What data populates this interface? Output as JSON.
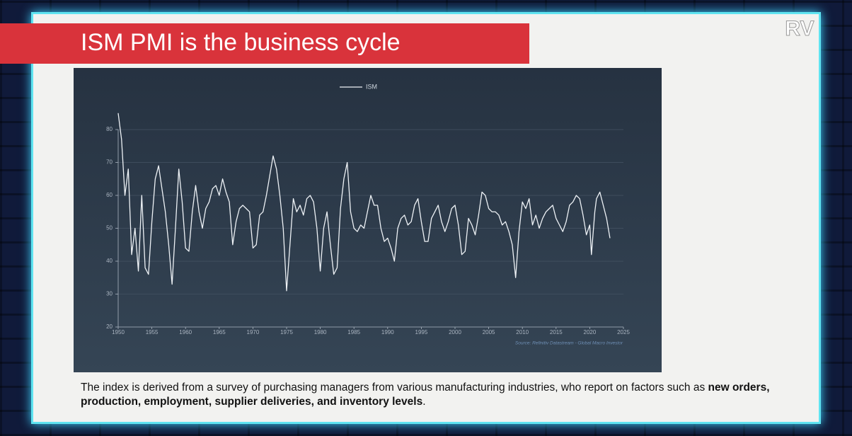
{
  "header": {
    "title": "ISM PMI is the business cycle",
    "logo": "RV"
  },
  "chart_data": {
    "type": "line",
    "legend": "top",
    "grid": true,
    "source": "Source: Refinitiv Datastream - Global Macro Investor",
    "x": [
      1950,
      1950.5,
      1951,
      1951.5,
      1952,
      1952.5,
      1953,
      1953.5,
      1954,
      1954.5,
      1955,
      1955.5,
      1956,
      1956.5,
      1957,
      1957.5,
      1958,
      1958.5,
      1959,
      1959.5,
      1960,
      1960.5,
      1961,
      1961.5,
      1962,
      1962.5,
      1963,
      1963.5,
      1964,
      1964.5,
      1965,
      1965.5,
      1966,
      1966.5,
      1967,
      1967.5,
      1968,
      1968.5,
      1969,
      1969.5,
      1970,
      1970.5,
      1971,
      1971.5,
      1972,
      1972.5,
      1973,
      1973.5,
      1974,
      1974.5,
      1975,
      1975.5,
      1976,
      1976.5,
      1977,
      1977.5,
      1978,
      1978.5,
      1979,
      1979.5,
      1980,
      1980.5,
      1981,
      1981.5,
      1982,
      1982.5,
      1983,
      1983.5,
      1984,
      1984.5,
      1985,
      1985.5,
      1986,
      1986.5,
      1987,
      1987.5,
      1988,
      1988.5,
      1989,
      1989.5,
      1990,
      1990.5,
      1991,
      1991.5,
      1992,
      1992.5,
      1993,
      1993.5,
      1994,
      1994.5,
      1995,
      1995.5,
      1996,
      1996.5,
      1997,
      1997.5,
      1998,
      1998.5,
      1999,
      1999.5,
      2000,
      2000.5,
      2001,
      2001.5,
      2002,
      2002.5,
      2003,
      2003.5,
      2004,
      2004.5,
      2005,
      2005.5,
      2006,
      2006.5,
      2007,
      2007.5,
      2008,
      2008.5,
      2009,
      2009.5,
      2010,
      2010.5,
      2011,
      2011.5,
      2012,
      2012.5,
      2013,
      2013.5,
      2014,
      2014.5,
      2015,
      2015.5,
      2016,
      2016.5,
      2017,
      2017.5,
      2018,
      2018.5,
      2019,
      2019.5,
      2020,
      2020.25,
      2020.75,
      2021,
      2021.5,
      2022,
      2022.5,
      2023
    ],
    "series": [
      {
        "name": "ISM",
        "color": "#eef2f6",
        "values": [
          85,
          77,
          60,
          68,
          42,
          50,
          37,
          60,
          38,
          36,
          52,
          65,
          69,
          62,
          55,
          45,
          33,
          50,
          68,
          58,
          44,
          43,
          55,
          63,
          55,
          50,
          56,
          58,
          62,
          63,
          60,
          65,
          61,
          58,
          45,
          52,
          56,
          57,
          56,
          55,
          44,
          45,
          54,
          55,
          60,
          66,
          72,
          68,
          60,
          50,
          31,
          45,
          59,
          55,
          57,
          54,
          59,
          60,
          58,
          50,
          37,
          50,
          55,
          45,
          36,
          38,
          56,
          65,
          70,
          55,
          50,
          49,
          51,
          50,
          55,
          60,
          57,
          57,
          50,
          46,
          47,
          44,
          40,
          50,
          53,
          54,
          51,
          52,
          57,
          59,
          52,
          46,
          46,
          53,
          55,
          57,
          52,
          49,
          52,
          56,
          57,
          51,
          42,
          43,
          53,
          51,
          48,
          54,
          61,
          60,
          56,
          55,
          55,
          54,
          51,
          52,
          49,
          45,
          35,
          49,
          58,
          56,
          59,
          51,
          54,
          50,
          53,
          55,
          56,
          57,
          53,
          51,
          49,
          52,
          57,
          58,
          60,
          59,
          54,
          48,
          51,
          42,
          55,
          59,
          61,
          57,
          53,
          47
        ]
      }
    ],
    "xlim": [
      1950,
      2025
    ],
    "ylim": [
      20,
      87
    ],
    "xticks": [
      1950,
      1955,
      1960,
      1965,
      1970,
      1975,
      1980,
      1985,
      1990,
      1995,
      2000,
      2005,
      2010,
      2015,
      2020,
      2025
    ],
    "yticks": [
      20,
      30,
      40,
      50,
      60,
      70,
      80
    ]
  },
  "caption": {
    "text": "The index is derived from a survey of purchasing managers from various manufacturing industries, who report on factors such as ",
    "bold": "new orders, production, employment, supplier deliveries, and inventory levels",
    "end": "."
  }
}
